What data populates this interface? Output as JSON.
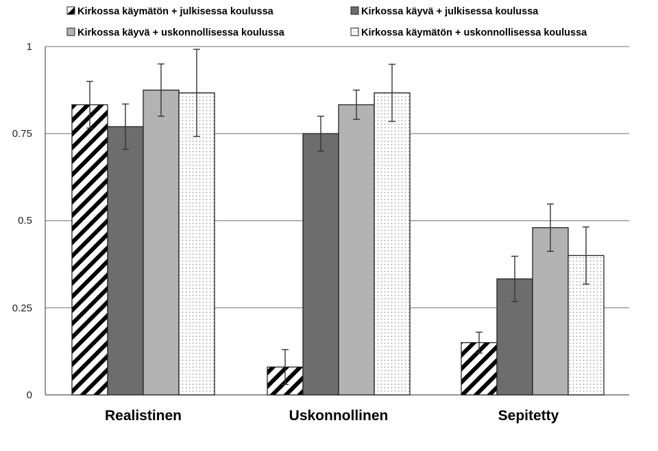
{
  "chart_data": {
    "type": "bar",
    "categories": [
      "Realistinen",
      "Uskonnollinen",
      "Sepitetty"
    ],
    "ylim": [
      0,
      1
    ],
    "yticks": [
      "0",
      "0.25",
      "0.5",
      "0.75",
      "1"
    ],
    "grid": true,
    "legend_position": "top",
    "series": [
      {
        "name": "Kirkossa käymätön + julkisessa koulussa",
        "fill": "hatch",
        "color": "#000000",
        "values": [
          0.833,
          0.08,
          0.15
        ],
        "errors": [
          0.067,
          0.05,
          0.03
        ]
      },
      {
        "name": "Kirkossa käyvä + julkisessa koulussa",
        "fill": "solid",
        "color": "#6d6d6d",
        "values": [
          0.77,
          0.75,
          0.333
        ],
        "errors": [
          0.065,
          0.05,
          0.065
        ]
      },
      {
        "name": "Kirkossa käyvä + uskonnollisessa koulussa",
        "fill": "solid",
        "color": "#b3b3b3",
        "values": [
          0.875,
          0.833,
          0.48
        ],
        "errors": [
          0.075,
          0.042,
          0.068
        ]
      },
      {
        "name": "Kirkossa käymätön + uskonnollisessa koulussa",
        "fill": "dots",
        "color": "#ffffff",
        "values": [
          0.867,
          0.867,
          0.4
        ],
        "errors": [
          0.125,
          0.082,
          0.082
        ]
      }
    ]
  }
}
